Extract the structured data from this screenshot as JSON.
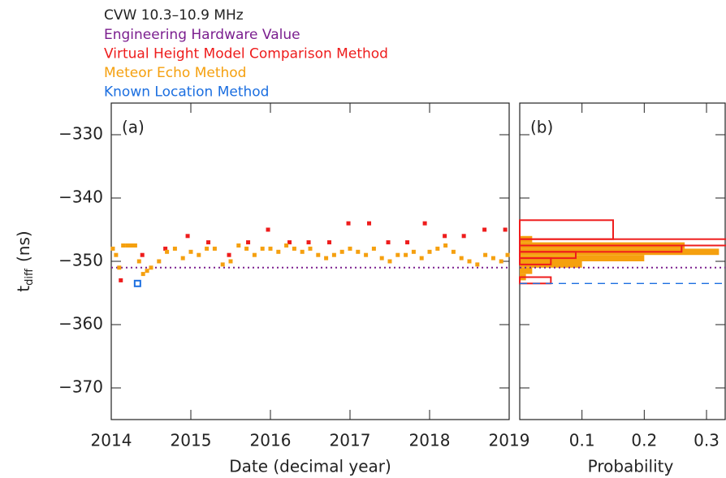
{
  "chart_data": [
    {
      "type": "scatter",
      "title": "CVW 10.3–10.9 MHz",
      "panel_label": "(a)",
      "x_label": "Date (decimal year)",
      "y_label": "t",
      "y_label_sub": "diff",
      "y_label_unit": "(ns)",
      "xlim": [
        2014,
        2019
      ],
      "xticks": [
        2014,
        2015,
        2016,
        2017,
        2018,
        2019
      ],
      "ylim": [
        -375,
        -325
      ],
      "yticks": [
        {
          "value": -330,
          "label": "−330"
        },
        {
          "value": -340,
          "label": "−340"
        },
        {
          "value": -350,
          "label": "−350"
        },
        {
          "value": -360,
          "label": "−360"
        },
        {
          "value": -370,
          "label": "−370"
        }
      ],
      "series": [
        {
          "name": "Engineering Hardware Value",
          "color": "#7b1f8f",
          "mark": "hline",
          "values": [
            -351
          ]
        },
        {
          "name": "Virtual Height Model Comparison Method",
          "color": "#ee1c1c",
          "mark": "point",
          "x": [
            2014.12,
            2014.39,
            2014.68,
            2014.96,
            2015.22,
            2015.48,
            2015.72,
            2015.97,
            2016.24,
            2016.48,
            2016.74,
            2016.98,
            2017.24,
            2017.48,
            2017.72,
            2017.94,
            2018.19,
            2018.43,
            2018.69,
            2018.95
          ],
          "values": [
            -353,
            -349,
            -348,
            -346,
            -347,
            -349,
            -347,
            -345,
            -347,
            -347,
            -347,
            -344,
            -344,
            -347,
            -347,
            -344,
            -346,
            -346,
            -345,
            -345
          ]
        },
        {
          "name": "Meteor Echo Method",
          "color": "#f5a00f",
          "mark": "point",
          "x": [
            2014.02,
            2014.06,
            2014.1,
            2014.15,
            2014.2,
            2014.25,
            2014.3,
            2014.35,
            2014.4,
            2014.45,
            2014.5,
            2014.6,
            2014.7,
            2014.8,
            2014.9,
            2015.0,
            2015.1,
            2015.2,
            2015.3,
            2015.4,
            2015.5,
            2015.6,
            2015.7,
            2015.8,
            2015.9,
            2016.0,
            2016.1,
            2016.2,
            2016.3,
            2016.4,
            2016.5,
            2016.6,
            2016.7,
            2016.8,
            2016.9,
            2017.0,
            2017.1,
            2017.2,
            2017.3,
            2017.4,
            2017.5,
            2017.6,
            2017.7,
            2017.8,
            2017.9,
            2018.0,
            2018.1,
            2018.2,
            2018.3,
            2018.4,
            2018.5,
            2018.6,
            2018.7,
            2018.8,
            2018.9,
            2018.98
          ],
          "values": [
            -348,
            -349,
            -351,
            -347.5,
            -347.5,
            -347.5,
            -347.5,
            -350,
            -352,
            -351.5,
            -351,
            -350,
            -348.5,
            -348,
            -349.5,
            -348.5,
            -349,
            -348,
            -348,
            -350.5,
            -350,
            -347.5,
            -348,
            -349,
            -348,
            -348,
            -348.5,
            -347.5,
            -348,
            -348.5,
            -348,
            -349,
            -349.5,
            -349,
            -348.5,
            -348,
            -348.5,
            -349,
            -348,
            -349.5,
            -350,
            -349,
            -349,
            -348.5,
            -349.5,
            -348.5,
            -348,
            -347.5,
            -348.5,
            -349.5,
            -350,
            -350.5,
            -349,
            -349.5,
            -350,
            -349
          ]
        },
        {
          "name": "Known Location Method",
          "color": "#1c6fe0",
          "mark": "open-point",
          "x": [
            2014.33
          ],
          "values": [
            -353.5
          ]
        }
      ]
    },
    {
      "type": "histogram",
      "panel_label": "(b)",
      "x_label": "Probability",
      "xlim": [
        0,
        0.33
      ],
      "xticks": [
        0.1,
        0.2,
        0.3
      ],
      "series": [
        {
          "color": "#f5a00f",
          "fill": true,
          "bins": [
            -346,
            -347,
            -348,
            -349,
            -350,
            -351,
            -352,
            -353
          ],
          "values": [
            0.02,
            0.265,
            0.32,
            0.2,
            0.1,
            0.02,
            0.01
          ]
        },
        {
          "color": "#ee1c1c",
          "fill": false,
          "bins": [
            -343.5,
            -346.5,
            -347.5,
            -348.5,
            -349.5,
            -350.5,
            -352.5,
            -353.5
          ],
          "values": [
            0.15,
            0.34,
            0.26,
            0.09,
            0.05,
            0,
            0.05
          ]
        }
      ]
    }
  ]
}
